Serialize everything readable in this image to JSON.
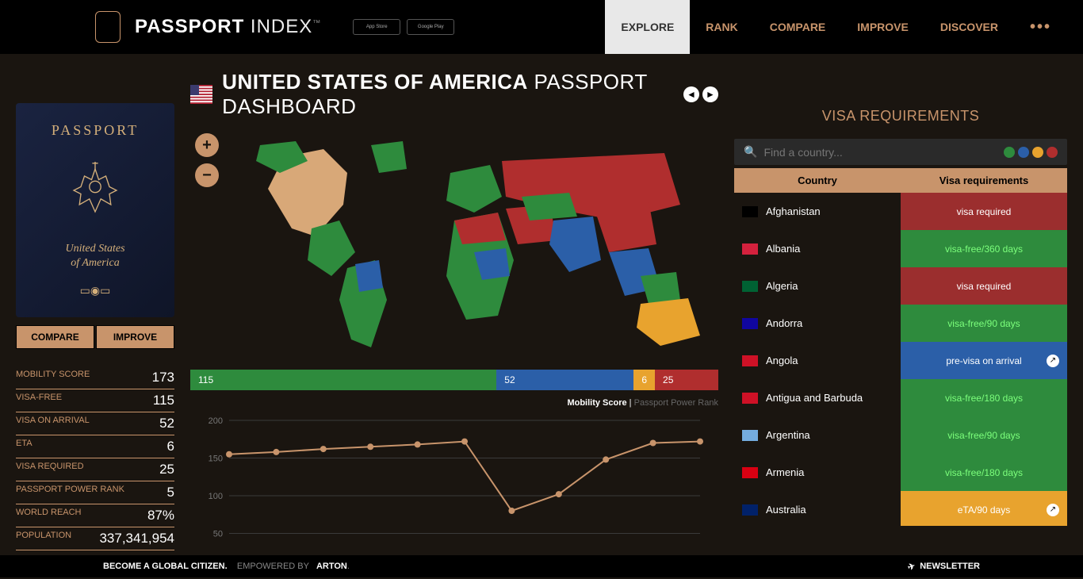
{
  "colors": {
    "accent": "#c8946b",
    "bg": "#1a1510",
    "green": "#2e8b3d",
    "blue": "#2b5fa8",
    "orange": "#e8a32e",
    "red": "#b02e2e",
    "tan": "#d8a878"
  },
  "header": {
    "logo_bold": "PASSPORT",
    "logo_light": " INDEX",
    "tm": "™",
    "store1": "App Store",
    "store2": "Google Play",
    "nav": [
      "EXPLORE",
      "RANK",
      "COMPARE",
      "IMPROVE",
      "DISCOVER"
    ],
    "active_nav": "EXPLORE"
  },
  "title": {
    "country_bold": "UNITED STATES OF AMERICA",
    "suffix": " PASSPORT DASHBOARD"
  },
  "passport": {
    "label": "PASSPORT",
    "country_line1": "United States",
    "country_line2": "of America",
    "compare_btn": "COMPARE",
    "improve_btn": "IMPROVE"
  },
  "stats": [
    {
      "label": "Mobility Score",
      "value": "173"
    },
    {
      "label": "Visa-Free",
      "value": "115"
    },
    {
      "label": "Visa on Arrival",
      "value": "52"
    },
    {
      "label": "eTA",
      "value": "6"
    },
    {
      "label": "Visa Required",
      "value": "25"
    },
    {
      "label": "Passport Power Rank",
      "value": "5"
    },
    {
      "label": "World Reach",
      "value": "87%"
    },
    {
      "label": "Population",
      "value": "337,341,954"
    }
  ],
  "breakdown": [
    {
      "value": "115",
      "color": "#2e8b3d",
      "width": 58
    },
    {
      "value": "52",
      "color": "#2b5fa8",
      "width": 26
    },
    {
      "value": "6",
      "color": "#e8a32e",
      "width": 4
    },
    {
      "value": "25",
      "color": "#b02e2e",
      "width": 12
    }
  ],
  "chart": {
    "legend_active": "Mobility Score",
    "legend_sep": " | ",
    "legend_inactive": "Passport Power Rank",
    "ylim": [
      0,
      200
    ],
    "yticks": [
      0,
      50,
      100,
      150,
      200
    ],
    "line_color": "#c8946b",
    "grid_color": "#3a3a3a",
    "points": [
      155,
      158,
      162,
      165,
      168,
      172,
      80,
      102,
      148,
      170,
      172
    ]
  },
  "visa_panel": {
    "title": "VISA REQUIREMENTS",
    "search_placeholder": "Find a country...",
    "filter_colors": [
      "#2e8b3d",
      "#2b5fa8",
      "#e8a32e",
      "#b02e2e"
    ],
    "th_country": "Country",
    "th_visa": "Visa requirements",
    "rows": [
      {
        "country": "Afghanistan",
        "req": "visa required",
        "bg": "#9b2e2e",
        "fg": "#fff",
        "flag": "#000"
      },
      {
        "country": "Albania",
        "req": "visa-free/360 days",
        "bg": "#2e8b3d",
        "fg": "#7cff7c",
        "flag": "#d4213d"
      },
      {
        "country": "Algeria",
        "req": "visa required",
        "bg": "#9b2e2e",
        "fg": "#fff",
        "flag": "#006233"
      },
      {
        "country": "Andorra",
        "req": "visa-free/90 days",
        "bg": "#2e8b3d",
        "fg": "#7cff7c",
        "flag": "#10069f"
      },
      {
        "country": "Angola",
        "req": "pre-visa on arrival",
        "bg": "#2b5fa8",
        "fg": "#fff",
        "flag": "#ce1126",
        "ext": true
      },
      {
        "country": "Antigua and Barbuda",
        "req": "visa-free/180 days",
        "bg": "#2e8b3d",
        "fg": "#7cff7c",
        "flag": "#ce1126"
      },
      {
        "country": "Argentina",
        "req": "visa-free/90 days",
        "bg": "#2e8b3d",
        "fg": "#7cff7c",
        "flag": "#74acdf"
      },
      {
        "country": "Armenia",
        "req": "visa-free/180 days",
        "bg": "#2e8b3d",
        "fg": "#7cff7c",
        "flag": "#d90012"
      },
      {
        "country": "Australia",
        "req": "eTA/90 days",
        "bg": "#e8a32e",
        "fg": "#fff",
        "flag": "#012169",
        "ext": true
      }
    ]
  },
  "footer": {
    "l1": "BECOME A GLOBAL CITIZEN.",
    "l2": "EMPOWERED BY",
    "l3": "ARTON",
    "newsletter": "NEWSLETTER"
  }
}
